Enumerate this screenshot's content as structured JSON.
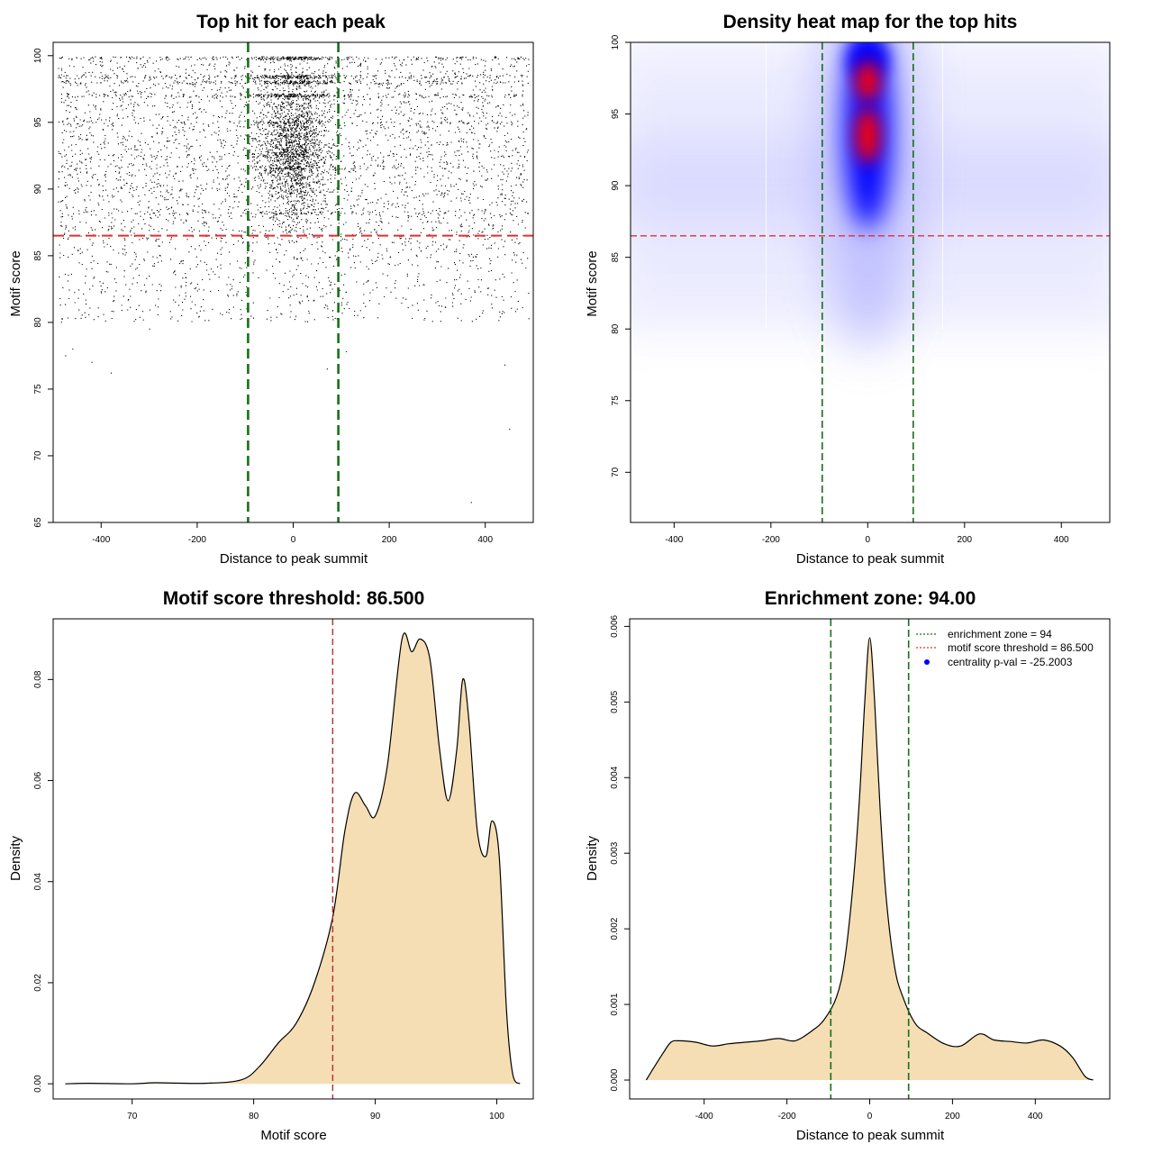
{
  "colors": {
    "threshold": "#e03030",
    "zone": "#1a6e1a",
    "fill": "#f5deb3",
    "points": "#000000",
    "heat_low": "#ffffff",
    "heat_mid": "#0000ff",
    "heat_high": "#ff0000",
    "centrality": "#0000ff"
  },
  "chart_data": [
    {
      "type": "scatter",
      "title": "Top hit for each peak",
      "xlabel": "Distance to peak summit",
      "ylabel": "Motif score",
      "xlim": [
        -500,
        500
      ],
      "ylim": [
        65,
        101
      ],
      "xticks": [
        "-400",
        "-200",
        "0",
        "200",
        "400"
      ],
      "yticks": [
        "65",
        "70",
        "75",
        "80",
        "85",
        "90",
        "95",
        "100"
      ],
      "threshold_y": 86.5,
      "zone_x": [
        -94,
        94
      ],
      "band_levels": [
        99.8,
        98.4,
        98.0,
        97.0,
        95.0,
        92.5,
        91.6,
        88.2
      ],
      "outliers": [
        [
          -475,
          77.5
        ],
        [
          -460,
          78
        ],
        [
          -420,
          77
        ],
        [
          -380,
          76.2
        ],
        [
          -300,
          79.5
        ],
        [
          70,
          76.5
        ],
        [
          110,
          77.8
        ],
        [
          370,
          66.5
        ],
        [
          440,
          76.8
        ],
        [
          450,
          72
        ]
      ]
    },
    {
      "type": "heatmap",
      "title": "Density heat map for the top hits",
      "xlabel": "Distance to peak summit",
      "ylabel": "Motif score",
      "xlim": [
        -490,
        500
      ],
      "ylim": [
        66.5,
        100
      ],
      "xticks": [
        "-400",
        "-200",
        "0",
        "200",
        "400"
      ],
      "yticks": [
        "70",
        "75",
        "80",
        "85",
        "90",
        "95",
        "100"
      ],
      "threshold_y": 86.5,
      "zone_x": [
        -94,
        94
      ],
      "hotspots": [
        [
          0,
          97.3
        ],
        [
          0,
          93.5
        ]
      ]
    },
    {
      "type": "area",
      "title": "Motif score threshold: 86.500",
      "xlabel": "Motif score",
      "ylabel": "Density",
      "xlim": [
        63.5,
        103
      ],
      "ylim": [
        -0.003,
        0.092
      ],
      "xticks": [
        "70",
        "80",
        "90",
        "100"
      ],
      "yticks": [
        "0.00",
        "0.02",
        "0.04",
        "0.06",
        "0.08"
      ],
      "threshold_x": 86.5,
      "x": [
        64.5,
        66.5,
        70,
        72,
        76,
        79,
        80.5,
        82,
        83.5,
        85,
        86.5,
        87.5,
        88.3,
        89.2,
        90,
        91,
        92.2,
        93,
        93.7,
        94.5,
        95.3,
        96,
        96.7,
        97.2,
        97.7,
        98.4,
        99.1,
        99.6,
        100.2,
        100.8,
        101.3,
        101.9
      ],
      "y": [
        0.0,
        0.0001,
        0.0,
        0.0002,
        0.0001,
        0.0008,
        0.0035,
        0.008,
        0.012,
        0.02,
        0.033,
        0.05,
        0.0575,
        0.055,
        0.053,
        0.063,
        0.088,
        0.0855,
        0.088,
        0.084,
        0.066,
        0.056,
        0.066,
        0.08,
        0.072,
        0.05,
        0.045,
        0.052,
        0.045,
        0.0145,
        0.002,
        0.0
      ]
    },
    {
      "type": "area",
      "title": "Enrichment zone: 94.00",
      "xlabel": "Distance to peak summit",
      "ylabel": "Density",
      "xlim": [
        -580,
        580
      ],
      "ylim": [
        -0.00025,
        0.0061
      ],
      "xticks": [
        "-400",
        "-200",
        "0",
        "200",
        "400"
      ],
      "yticks": [
        "0.000",
        "0.001",
        "0.002",
        "0.003",
        "0.004",
        "0.005",
        "0.006"
      ],
      "zone_x": [
        -94,
        94
      ],
      "x": [
        -540,
        -500,
        -480,
        -460,
        -420,
        -380,
        -340,
        -300,
        -260,
        -220,
        -180,
        -140,
        -110,
        -80,
        -60,
        -40,
        -25,
        -12,
        0,
        12,
        25,
        40,
        60,
        80,
        110,
        140,
        180,
        220,
        265,
        300,
        340,
        380,
        420,
        460,
        490,
        520,
        540
      ],
      "y": [
        0.0,
        0.00035,
        0.0005,
        0.00052,
        0.0005,
        0.00045,
        0.00048,
        0.0005,
        0.00052,
        0.00055,
        0.00052,
        0.00065,
        0.0008,
        0.0011,
        0.0016,
        0.0026,
        0.0037,
        0.005,
        0.00585,
        0.005,
        0.0036,
        0.0024,
        0.0015,
        0.0011,
        0.00075,
        0.00062,
        0.00048,
        0.00045,
        0.00061,
        0.00053,
        0.00051,
        0.00049,
        0.00053,
        0.00045,
        0.0003,
        5e-05,
        0.0
      ],
      "legend": [
        {
          "label": "enrichment zone = 94",
          "style": "dotted-green"
        },
        {
          "label": "motif score threshold = 86.500",
          "style": "dotted-red"
        },
        {
          "label": "centrality p-val = -25.2003",
          "style": "blue-dot"
        }
      ],
      "legend_position": "top-right"
    }
  ]
}
